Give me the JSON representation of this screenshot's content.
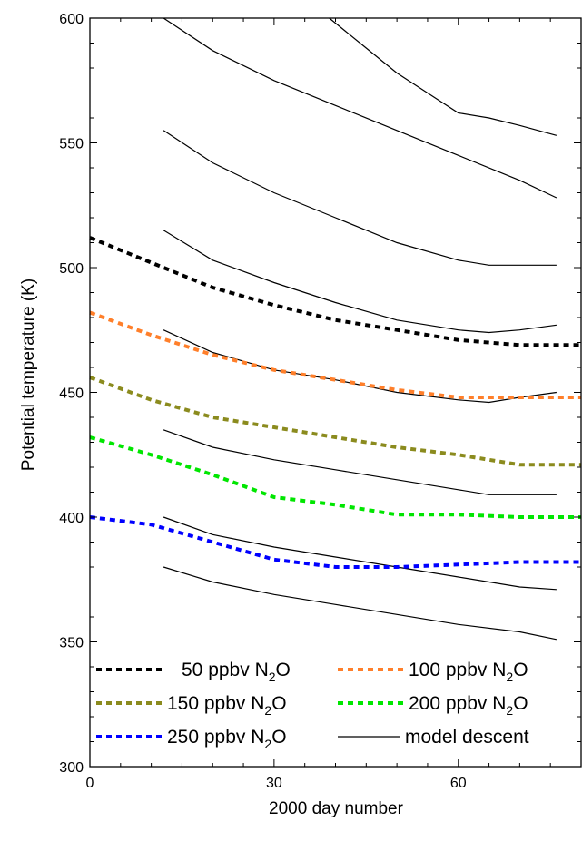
{
  "chart_data": {
    "type": "line",
    "title": "",
    "xlabel": "2000 day number",
    "ylabel": "Potential temperature (K)",
    "xlim": [
      0,
      80
    ],
    "ylim": [
      300,
      600
    ],
    "xticks": [
      0,
      30,
      60
    ],
    "yticks": [
      300,
      350,
      400,
      450,
      500,
      550,
      600
    ],
    "grid": false,
    "legend_placement": "bottom",
    "n2o_series": [
      {
        "name": "50 ppbv N2O",
        "label_main": "50 ppbv N",
        "label_sub": "2",
        "label_tail": "O",
        "color": "#000000",
        "x": [
          0,
          10,
          20,
          30,
          40,
          50,
          60,
          70,
          80
        ],
        "y": [
          512,
          502,
          492,
          485,
          479,
          475,
          471,
          469,
          469
        ]
      },
      {
        "name": "100 ppbv N2O",
        "label_main": "100 ppbv N",
        "label_sub": "2",
        "label_tail": "O",
        "color": "#ff7f2a",
        "x": [
          0,
          10,
          20,
          30,
          40,
          50,
          60,
          70,
          80
        ],
        "y": [
          482,
          473,
          465,
          459,
          455,
          451,
          448,
          448,
          448
        ]
      },
      {
        "name": "150 ppbv N2O",
        "label_main": "150 ppbv N",
        "label_sub": "2",
        "label_tail": "O",
        "color": "#8b8b1e",
        "x": [
          0,
          10,
          20,
          30,
          40,
          50,
          60,
          70,
          80
        ],
        "y": [
          456,
          447,
          440,
          436,
          432,
          428,
          425,
          421,
          421
        ]
      },
      {
        "name": "200 ppbv N2O",
        "label_main": "200 ppbv N",
        "label_sub": "2",
        "label_tail": "O",
        "color": "#00e600",
        "x": [
          0,
          10,
          20,
          30,
          40,
          50,
          60,
          70,
          80
        ],
        "y": [
          432,
          425,
          417,
          408,
          405,
          401,
          401,
          400,
          400
        ]
      },
      {
        "name": "250 ppbv N2O",
        "label_main": "250 ppbv N",
        "label_sub": "2",
        "label_tail": "O",
        "color": "#0000ff",
        "x": [
          0,
          10,
          20,
          30,
          40,
          50,
          60,
          70,
          80
        ],
        "y": [
          400,
          397,
          390,
          383,
          380,
          380,
          381,
          382,
          382
        ]
      }
    ],
    "model_descent": {
      "name": "model descent",
      "color": "#000000",
      "lines": [
        {
          "x": [
            12,
            20,
            30,
            40,
            50,
            60,
            70,
            76
          ],
          "y": [
            600,
            587,
            575,
            565,
            555,
            545,
            535,
            528
          ]
        },
        {
          "x": [
            39,
            45,
            50,
            55,
            60,
            65,
            70,
            76
          ],
          "y": [
            600,
            588,
            578,
            570,
            562,
            560,
            557,
            553
          ]
        },
        {
          "x": [
            12,
            20,
            30,
            40,
            50,
            60,
            65,
            70,
            76
          ],
          "y": [
            555,
            542,
            530,
            520,
            510,
            503,
            501,
            501,
            501
          ]
        },
        {
          "x": [
            12,
            20,
            30,
            40,
            50,
            60,
            65,
            70,
            76
          ],
          "y": [
            515,
            503,
            494,
            486,
            479,
            475,
            474,
            475,
            477
          ]
        },
        {
          "x": [
            12,
            20,
            30,
            40,
            50,
            60,
            65,
            70,
            76
          ],
          "y": [
            475,
            466,
            459,
            455,
            450,
            447,
            446,
            448,
            450
          ]
        },
        {
          "x": [
            12,
            20,
            30,
            40,
            50,
            60,
            65,
            70,
            76
          ],
          "y": [
            435,
            428,
            423,
            419,
            415,
            411,
            409,
            409,
            409
          ]
        },
        {
          "x": [
            12,
            20,
            30,
            40,
            50,
            60,
            70,
            76
          ],
          "y": [
            400,
            393,
            388,
            384,
            380,
            376,
            372,
            371
          ]
        },
        {
          "x": [
            12,
            20,
            30,
            40,
            50,
            60,
            70,
            76
          ],
          "y": [
            380,
            374,
            369,
            365,
            361,
            357,
            354,
            351
          ]
        }
      ]
    }
  }
}
